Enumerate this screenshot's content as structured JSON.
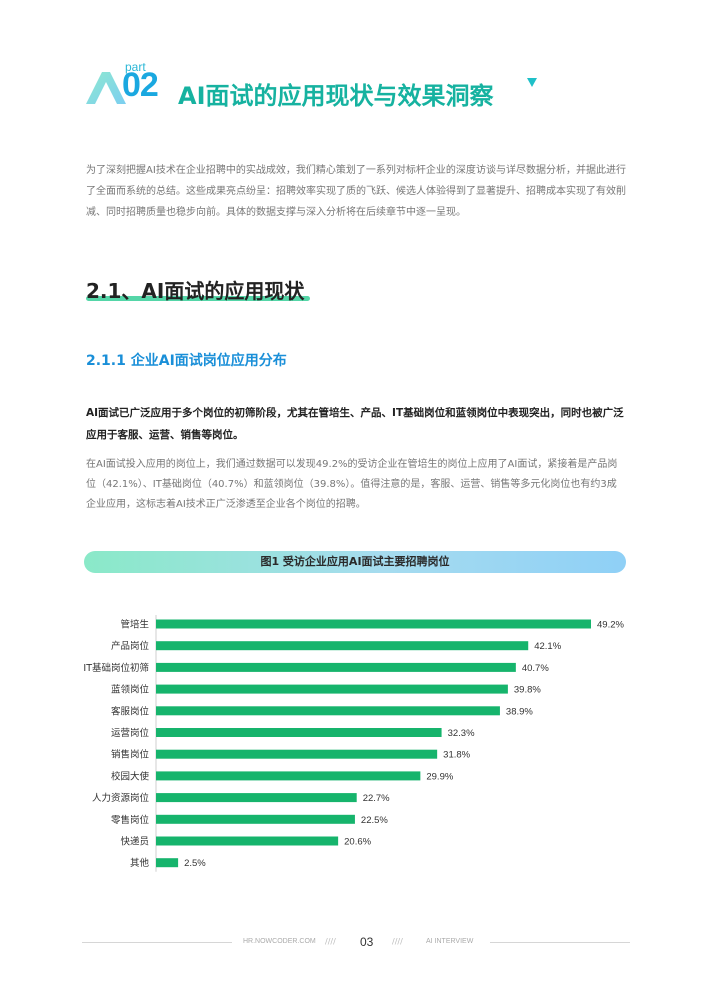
{
  "header": {
    "part_label": "part",
    "part_number": "02",
    "title": "AI面试的应用现状与效果洞察"
  },
  "intro_paragraph": "为了深刻把握AI技术在企业招聘中的实战成效，我们精心策划了一系列对标杆企业的深度访谈与详尽数据分析，并据此进行了全面而系统的总结。这些成果亮点纷呈：招聘效率实现了质的飞跃、候选人体验得到了显著提升、招聘成本实现了有效削减、同时招聘质量也稳步向前。具体的数据支撑与深入分析将在后续章节中逐一呈现。",
  "section": {
    "title": "2.1、AI面试的应用现状"
  },
  "subsection": {
    "title": "2.1.1 企业AI面试岗位应用分布"
  },
  "lead_paragraph": "AI面试已广泛应用于多个岗位的初筛阶段，尤其在管培生、产品、IT基础岗位和蓝领岗位中表现突出，同时也被广泛应用于客服、运营、销售等岗位。",
  "body_paragraph": "在AI面试投入应用的岗位上，我们通过数据可以发现49.2%的受访企业在管培生的岗位上应用了AI面试，紧接着是产品岗位（42.1%）、IT基础岗位（40.7%）和蓝领岗位（39.8%）。值得注意的是，客服、运营、销售等多元化岗位也有约3成企业应用，这标志着AI技术正广泛渗透至企业各个岗位的招聘。",
  "chart_data": {
    "type": "bar",
    "orientation": "horizontal",
    "title": "图1 受访企业应用AI面试主要招聘岗位",
    "categories": [
      "管培生",
      "产品岗位",
      "IT基础岗位初筛",
      "蓝领岗位",
      "客服岗位",
      "运营岗位",
      "销售岗位",
      "校园大使",
      "人力资源岗位",
      "零售岗位",
      "快递员",
      "其他"
    ],
    "values": [
      49.2,
      42.1,
      40.7,
      39.8,
      38.9,
      32.3,
      31.8,
      29.9,
      22.7,
      22.5,
      20.6,
      2.5
    ],
    "value_labels": [
      "49.2%",
      "42.1%",
      "40.7%",
      "39.8%",
      "38.9%",
      "32.3%",
      "31.8%",
      "29.9%",
      "22.7%",
      "22.5%",
      "20.6%",
      "2.5%"
    ],
    "unit": "%",
    "bar_color": "#16b46c",
    "xlim": [
      0,
      49.2
    ],
    "grid": false,
    "legend": "none"
  },
  "footer": {
    "site": "HR.NOWCODER.COM",
    "slashes_left": "////",
    "page_number": "03",
    "slashes_right": "////",
    "brand": "AI INTERVIEW"
  },
  "colors": {
    "accent_green": "#16b2a0",
    "accent_blue": "#1aa8e0",
    "subheading_blue": "#1a8fd8",
    "bar_green": "#16b46c",
    "underline_green": "#55d6a8"
  }
}
